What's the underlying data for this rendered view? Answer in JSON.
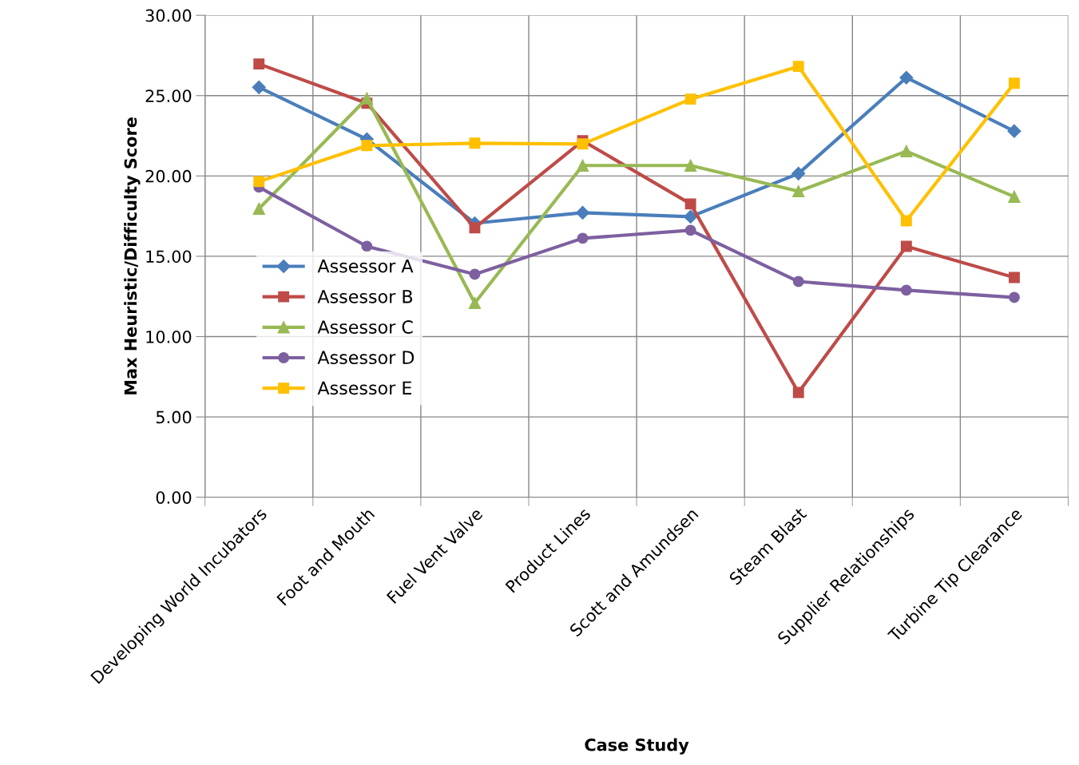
{
  "chart_data": {
    "type": "line",
    "xlabel": "Case Study",
    "ylabel": "Max Heuristic/Difficulty Score",
    "categories": [
      "Developing World Incubators",
      "Foot and Mouth",
      "Fuel Vent Valve",
      "Product Lines",
      "Scott and Amundsen",
      "Steam Blast",
      "Supplier Relationships",
      "Turbine Tip Clearance"
    ],
    "series": [
      {
        "name": "Assessor A",
        "color": "#4a7ebb",
        "marker": "diamond",
        "values": [
          25.52,
          22.29,
          17.06,
          17.71,
          17.46,
          20.15,
          26.12,
          22.79
        ]
      },
      {
        "name": "Assessor B",
        "color": "#be4b48",
        "marker": "square",
        "values": [
          26.97,
          24.53,
          16.77,
          22.19,
          18.26,
          6.52,
          15.62,
          13.68
        ]
      },
      {
        "name": "Assessor C",
        "color": "#98b954",
        "marker": "triangle",
        "values": [
          17.96,
          24.83,
          12.09,
          20.65,
          20.65,
          19.05,
          21.54,
          18.71
        ]
      },
      {
        "name": "Assessor D",
        "color": "#7d60a0",
        "marker": "circle",
        "values": [
          19.3,
          15.62,
          13.88,
          16.12,
          16.62,
          13.43,
          12.89,
          12.44
        ]
      },
      {
        "name": "Assessor E",
        "color": "#ffc000",
        "marker": "square",
        "values": [
          19.65,
          21.89,
          22.04,
          21.99,
          24.78,
          26.82,
          17.21,
          25.77
        ]
      }
    ],
    "ylim": [
      0,
      30
    ],
    "yticks": [
      {
        "value": 0,
        "label": "0.00"
      },
      {
        "value": 5,
        "label": "5.00"
      },
      {
        "value": 10,
        "label": "10.00"
      },
      {
        "value": 15,
        "label": "15.00"
      },
      {
        "value": 20,
        "label": "20.00"
      },
      {
        "value": 25,
        "label": "25.00"
      },
      {
        "value": 30,
        "label": "30.00"
      }
    ],
    "grid": true,
    "legend": "left",
    "line_style": "solid"
  }
}
